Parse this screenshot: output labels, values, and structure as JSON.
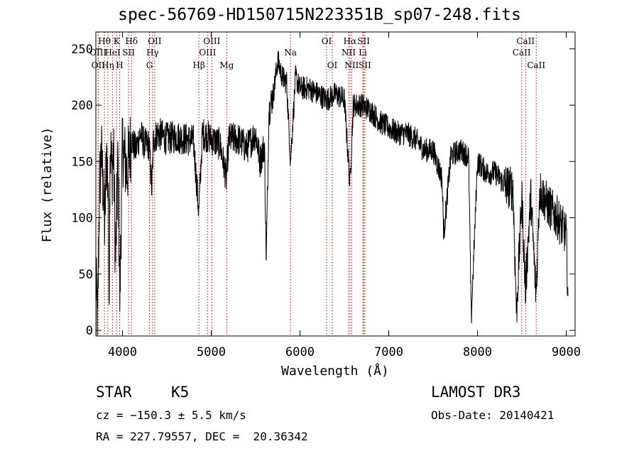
{
  "chart_data": {
    "type": "line",
    "title": "spec-56769-HD150715N223351B_sp07-248.fits",
    "xlabel": "Wavelength (Å)",
    "ylabel": "Flux (relative)",
    "xlim": [
      3700,
      9100
    ],
    "ylim": [
      -5,
      265
    ],
    "xticks": [
      4000,
      5000,
      6000,
      7000,
      8000,
      9000
    ],
    "yticks": [
      0,
      50,
      100,
      150,
      200,
      250
    ],
    "spectrum_anchors": [
      [
        3700,
        45
      ],
      [
        3720,
        5
      ],
      [
        3740,
        120
      ],
      [
        3760,
        160
      ],
      [
        3780,
        130
      ],
      [
        3800,
        90
      ],
      [
        3820,
        160
      ],
      [
        3840,
        120
      ],
      [
        3850,
        40
      ],
      [
        3860,
        170
      ],
      [
        3880,
        140
      ],
      [
        3900,
        160
      ],
      [
        3920,
        60
      ],
      [
        3950,
        150
      ],
      [
        3970,
        30
      ],
      [
        4000,
        165
      ],
      [
        4050,
        140
      ],
      [
        4100,
        170
      ],
      [
        4150,
        160
      ],
      [
        4200,
        175
      ],
      [
        4250,
        165
      ],
      [
        4300,
        165
      ],
      [
        4330,
        125
      ],
      [
        4350,
        170
      ],
      [
        4400,
        175
      ],
      [
        4500,
        170
      ],
      [
        4600,
        172
      ],
      [
        4700,
        170
      ],
      [
        4800,
        168
      ],
      [
        4860,
        105
      ],
      [
        4900,
        175
      ],
      [
        5000,
        170
      ],
      [
        5100,
        165
      ],
      [
        5170,
        135
      ],
      [
        5200,
        170
      ],
      [
        5300,
        170
      ],
      [
        5400,
        162
      ],
      [
        5500,
        175
      ],
      [
        5550,
        150
      ],
      [
        5600,
        165
      ],
      [
        5620,
        60
      ],
      [
        5650,
        195
      ],
      [
        5700,
        210
      ],
      [
        5750,
        240
      ],
      [
        5800,
        225
      ],
      [
        5850,
        220
      ],
      [
        5893,
        150
      ],
      [
        5950,
        225
      ],
      [
        6000,
        215
      ],
      [
        6100,
        215
      ],
      [
        6200,
        210
      ],
      [
        6300,
        205
      ],
      [
        6400,
        210
      ],
      [
        6500,
        205
      ],
      [
        6563,
        130
      ],
      [
        6600,
        200
      ],
      [
        6700,
        200
      ],
      [
        6800,
        195
      ],
      [
        6900,
        185
      ],
      [
        7000,
        180
      ],
      [
        7100,
        175
      ],
      [
        7200,
        175
      ],
      [
        7300,
        170
      ],
      [
        7400,
        160
      ],
      [
        7500,
        160
      ],
      [
        7600,
        135
      ],
      [
        7620,
        85
      ],
      [
        7700,
        155
      ],
      [
        7800,
        160
      ],
      [
        7900,
        155
      ],
      [
        7930,
        10
      ],
      [
        8000,
        150
      ],
      [
        8100,
        140
      ],
      [
        8200,
        140
      ],
      [
        8300,
        130
      ],
      [
        8400,
        125
      ],
      [
        8440,
        15
      ],
      [
        8500,
        120
      ],
      [
        8540,
        35
      ],
      [
        8600,
        120
      ],
      [
        8660,
        30
      ],
      [
        8700,
        125
      ],
      [
        8800,
        110
      ],
      [
        8900,
        100
      ],
      [
        9000,
        85
      ],
      [
        9020,
        30
      ]
    ],
    "lines_row1": [
      {
        "label": "Hθ",
        "x": 3797
      },
      {
        "label": "K",
        "x": 3934
      },
      {
        "label": "Hδ",
        "x": 4102
      },
      {
        "label": "OII",
        "x": 4363
      },
      {
        "label": "OIII",
        "x": 5007
      },
      {
        "label": "OI",
        "x": 6300
      },
      {
        "label": "Hα",
        "x": 6563
      },
      {
        "label": "SII",
        "x": 6717
      },
      {
        "label": "CaII",
        "x": 8542
      }
    ],
    "lines_row2": [
      {
        "label": "OIII",
        "x": 3726
      },
      {
        "label": "HeI",
        "x": 3889
      },
      {
        "label": "SII",
        "x": 4069
      },
      {
        "label": "Hγ",
        "x": 4340
      },
      {
        "label": "OIII",
        "x": 4959
      },
      {
        "label": "Na",
        "x": 5893
      },
      {
        "label": "NII",
        "x": 6548
      },
      {
        "label": "Li",
        "x": 6708
      },
      {
        "label": "CaII",
        "x": 8498
      }
    ],
    "lines_row3": [
      {
        "label": "OII",
        "x": 3727
      },
      {
        "label": "Hη",
        "x": 3835
      },
      {
        "label": "H",
        "x": 3968
      },
      {
        "label": "G",
        "x": 4304
      },
      {
        "label": "Hβ",
        "x": 4861
      },
      {
        "label": "Mg",
        "x": 5175
      },
      {
        "label": "OI",
        "x": 6364
      },
      {
        "label": "NII",
        "x": 6583
      },
      {
        "label": "SII",
        "x": 6731
      },
      {
        "label": "CaII",
        "x": 8662
      }
    ]
  },
  "info": {
    "class": "STAR",
    "subclass": "K5",
    "survey": "LAMOST DR3",
    "cz": "cz = −150.3 ± 5.5 km/s",
    "obs_date": "Obs-Date: 20140421",
    "coords": "RA = 227.79557, DEC =  20.36342"
  }
}
